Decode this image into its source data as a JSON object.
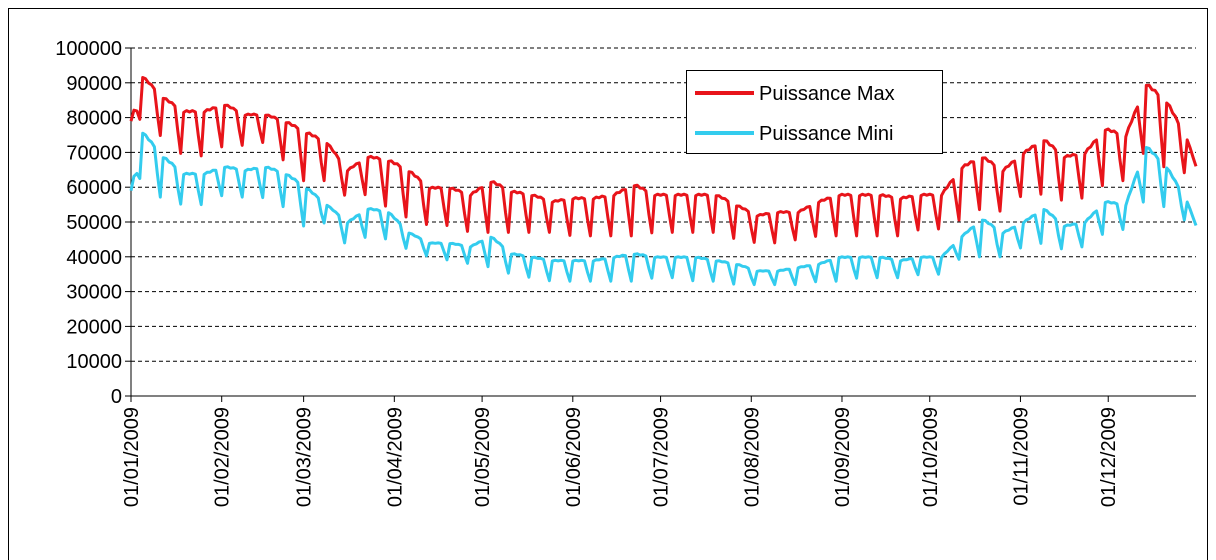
{
  "chart_data": {
    "type": "line",
    "title": "",
    "xlabel": "",
    "ylabel": "",
    "x_range": [
      "01/01/2009",
      "31/12/2009"
    ],
    "ylim": [
      0,
      100000
    ],
    "yticks": [
      0,
      10000,
      20000,
      30000,
      40000,
      50000,
      60000,
      70000,
      80000,
      90000,
      100000
    ],
    "ytick_labels": [
      "0",
      "10000",
      "20000",
      "30000",
      "40000",
      "50000",
      "60000",
      "70000",
      "80000",
      "90000",
      "100000"
    ],
    "xtick_labels": [
      "01/01/2009",
      "01/02/2009",
      "01/03/2009",
      "01/04/2009",
      "01/05/2009",
      "01/06/2009",
      "01/07/2009",
      "01/08/2009",
      "01/09/2009",
      "01/10/2009",
      "01/11/2009",
      "01/12/2009"
    ],
    "grid": "horizontal dashed",
    "legend_position": "top-right",
    "weekly_pattern": "weekdays high, Saturday lower, Sunday lowest",
    "series": [
      {
        "name": "Puissance Max",
        "color": "#e8141a",
        "weekly_envelope": {
          "dates": [
            "01/01/2009",
            "05/01/2009",
            "12/01/2009",
            "19/01/2009",
            "26/01/2009",
            "02/02/2009",
            "09/02/2009",
            "16/02/2009",
            "23/02/2009",
            "02/03/2009",
            "09/03/2009",
            "16/03/2009",
            "23/03/2009",
            "30/03/2009",
            "06/04/2009",
            "13/04/2009",
            "20/04/2009",
            "27/04/2009",
            "04/05/2009",
            "11/05/2009",
            "18/05/2009",
            "25/05/2009",
            "01/06/2009",
            "08/06/2009",
            "15/06/2009",
            "22/06/2009",
            "29/06/2009",
            "06/07/2009",
            "13/07/2009",
            "20/07/2009",
            "27/07/2009",
            "03/08/2009",
            "10/08/2009",
            "17/08/2009",
            "24/08/2009",
            "31/08/2009",
            "07/09/2009",
            "14/09/2009",
            "21/09/2009",
            "28/09/2009",
            "05/10/2009",
            "12/10/2009",
            "19/10/2009",
            "26/10/2009",
            "02/11/2009",
            "09/11/2009",
            "16/11/2009",
            "23/11/2009",
            "30/11/2009",
            "07/12/2009",
            "14/12/2009",
            "21/12/2009",
            "28/12/2009",
            "31/12/2009"
          ],
          "weekday_max": [
            79000,
            92000,
            86000,
            82000,
            82000,
            84000,
            81000,
            81000,
            79000,
            76000,
            73000,
            65000,
            69000,
            68000,
            65000,
            60000,
            60000,
            58000,
            62000,
            59000,
            58000,
            56000,
            57000,
            57000,
            58000,
            61000,
            58000,
            58000,
            58000,
            58000,
            55000,
            52000,
            53000,
            53000,
            56000,
            58000,
            58000,
            58000,
            57000,
            58000,
            58000,
            66000,
            69000,
            65000,
            70000,
            74000,
            69000,
            70000,
            77000,
            75000,
            90000,
            85000,
            74000,
            66000
          ],
          "sunday_min": [
            78000,
            80000,
            74000,
            69000,
            69000,
            72000,
            72000,
            73000,
            67000,
            61000,
            62000,
            57000,
            58000,
            54000,
            51000,
            49000,
            49000,
            47000,
            47000,
            47000,
            47000,
            47000,
            46000,
            46000,
            46000,
            46000,
            47000,
            47000,
            47000,
            47000,
            45000,
            44000,
            44000,
            45000,
            46000,
            46000,
            46000,
            46000,
            46000,
            48000,
            48000,
            51000,
            54000,
            53000,
            58000,
            58000,
            56000,
            57000,
            61000,
            62000,
            71000,
            65000,
            64000,
            65000
          ]
        }
      },
      {
        "name": "Puissance Mini",
        "color": "#33ccee",
        "weekly_envelope": {
          "dates": [
            "01/01/2009",
            "05/01/2009",
            "12/01/2009",
            "19/01/2009",
            "26/01/2009",
            "02/02/2009",
            "09/02/2009",
            "16/02/2009",
            "23/02/2009",
            "02/03/2009",
            "09/03/2009",
            "16/03/2009",
            "23/03/2009",
            "30/03/2009",
            "06/04/2009",
            "13/04/2009",
            "20/04/2009",
            "27/04/2009",
            "04/05/2009",
            "11/05/2009",
            "18/05/2009",
            "25/05/2009",
            "01/06/2009",
            "08/06/2009",
            "15/06/2009",
            "22/06/2009",
            "29/06/2009",
            "06/07/2009",
            "13/07/2009",
            "20/07/2009",
            "27/07/2009",
            "03/08/2009",
            "10/08/2009",
            "17/08/2009",
            "24/08/2009",
            "31/08/2009",
            "07/09/2009",
            "14/09/2009",
            "21/09/2009",
            "28/09/2009",
            "05/10/2009",
            "12/10/2009",
            "19/10/2009",
            "26/10/2009",
            "02/11/2009",
            "09/11/2009",
            "16/11/2009",
            "23/11/2009",
            "30/11/2009",
            "07/12/2009",
            "14/12/2009",
            "21/12/2009",
            "28/12/2009",
            "31/12/2009"
          ],
          "weekday_max": [
            59000,
            76000,
            69000,
            64000,
            64000,
            66000,
            65000,
            66000,
            64000,
            60000,
            55000,
            50000,
            54000,
            53000,
            47000,
            44000,
            44000,
            43000,
            46000,
            41000,
            40000,
            39000,
            39000,
            39000,
            40000,
            41000,
            40000,
            40000,
            40000,
            39000,
            38000,
            36000,
            36000,
            37000,
            38000,
            40000,
            40000,
            40000,
            39000,
            40000,
            40000,
            46000,
            51000,
            47000,
            50000,
            54000,
            49000,
            50000,
            56000,
            55000,
            72000,
            66000,
            56000,
            49000
          ],
          "sunday_min": [
            58000,
            64000,
            56000,
            55000,
            55000,
            58000,
            57000,
            57000,
            54000,
            48000,
            50000,
            43000,
            46000,
            45000,
            42000,
            40000,
            39000,
            38000,
            37000,
            35000,
            34000,
            33000,
            33000,
            33000,
            33000,
            33000,
            34000,
            34000,
            33000,
            33000,
            32000,
            32000,
            32000,
            32000,
            33000,
            33000,
            34000,
            34000,
            34000,
            35000,
            35000,
            40000,
            40000,
            40000,
            43000,
            44000,
            42000,
            43000,
            47000,
            48000,
            57000,
            54000,
            50000,
            49000
          ]
        }
      }
    ]
  }
}
